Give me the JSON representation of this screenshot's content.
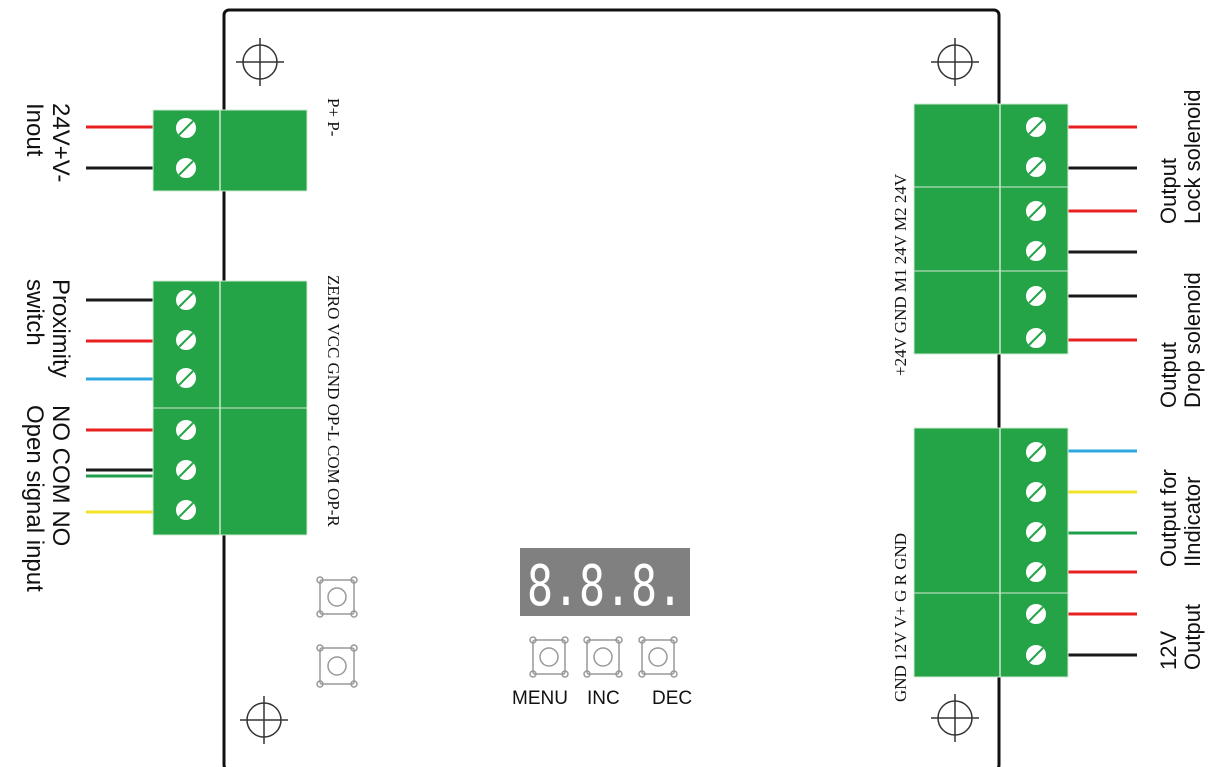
{
  "left_labels": {
    "power_input": [
      "24V+V-",
      "Inout"
    ],
    "proximity": [
      "Proximity",
      "switch"
    ],
    "signal": [
      "NO COM NO",
      "Open signal input"
    ]
  },
  "left_terminals": {
    "power": "P+   P-",
    "sensor_signal": "ZERO VCC GND OP-L COM OP-R"
  },
  "right_terminals": {
    "solenoids": "+24V GND  M1  24V  M2  24V",
    "indicator": "GND 12V  V+   G   R   GND"
  },
  "right_labels": {
    "lock": [
      "Output",
      "Lock solenoid"
    ],
    "drop": [
      "Output",
      "Drop  solenoid"
    ],
    "indicator": [
      "Output for",
      "IIndicator"
    ],
    "power12": [
      "12V",
      "Output"
    ]
  },
  "display": {
    "text": "8.8.8."
  },
  "buttons": {
    "menu": "MENU",
    "inc": "INC",
    "dec": "DEC"
  },
  "colors": {
    "terminal_green": "#24a447",
    "screw": "#ffffff",
    "wire_red": "#e81f1f",
    "wire_black": "#1a1a1a",
    "wire_blue": "#2fa7e0",
    "wire_yellow": "#f0e32a",
    "wire_green": "#1e9e48",
    "display_bg": "#808080"
  }
}
